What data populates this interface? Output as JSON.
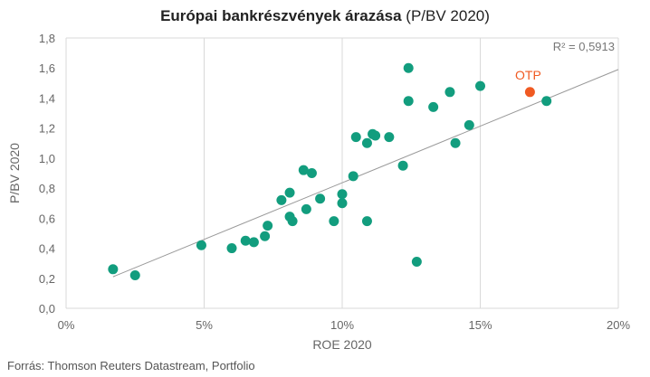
{
  "title_main": "Európai bankrészvények árazása",
  "title_paren": "(P/BV 2020)",
  "source": "Forrás: Thomson Reuters Datastream, Portfolio",
  "chart_data": {
    "type": "scatter",
    "xlabel": "ROE 2020",
    "ylabel": "P/BV 2020",
    "xlim": [
      0,
      20
    ],
    "ylim": [
      0,
      1.8
    ],
    "x_ticks": [
      "0%",
      "5%",
      "10%",
      "15%",
      "20%"
    ],
    "y_ticks": [
      "0,0",
      "0,2",
      "0,4",
      "0,6",
      "0,8",
      "1,0",
      "1,2",
      "1,4",
      "1,6",
      "1,8"
    ],
    "grid": "vertical",
    "r2_label": "R² = 0,5913",
    "trendline": {
      "x": [
        1.7,
        20
      ],
      "y": [
        0.21,
        1.59
      ]
    },
    "colors": {
      "points": "#129d7e",
      "highlight": "#f05a22",
      "trend": "#999999",
      "grid": "#d9d9d9"
    },
    "highlight": {
      "label": "OTP",
      "x": 16.8,
      "y": 1.44
    },
    "points": [
      {
        "x": 1.7,
        "y": 0.26
      },
      {
        "x": 2.5,
        "y": 0.22
      },
      {
        "x": 4.9,
        "y": 0.42
      },
      {
        "x": 6.0,
        "y": 0.4
      },
      {
        "x": 6.5,
        "y": 0.45
      },
      {
        "x": 6.8,
        "y": 0.44
      },
      {
        "x": 7.2,
        "y": 0.48
      },
      {
        "x": 7.3,
        "y": 0.55
      },
      {
        "x": 7.8,
        "y": 0.72
      },
      {
        "x": 8.1,
        "y": 0.77
      },
      {
        "x": 8.1,
        "y": 0.61
      },
      {
        "x": 8.2,
        "y": 0.58
      },
      {
        "x": 8.6,
        "y": 0.92
      },
      {
        "x": 8.7,
        "y": 0.66
      },
      {
        "x": 8.9,
        "y": 0.9
      },
      {
        "x": 9.2,
        "y": 0.73
      },
      {
        "x": 9.7,
        "y": 0.58
      },
      {
        "x": 10.0,
        "y": 0.76
      },
      {
        "x": 10.0,
        "y": 0.7
      },
      {
        "x": 10.4,
        "y": 0.88
      },
      {
        "x": 10.5,
        "y": 1.14
      },
      {
        "x": 10.9,
        "y": 1.1
      },
      {
        "x": 10.9,
        "y": 0.58
      },
      {
        "x": 11.1,
        "y": 1.16
      },
      {
        "x": 11.2,
        "y": 1.15
      },
      {
        "x": 11.7,
        "y": 1.14
      },
      {
        "x": 12.2,
        "y": 0.95
      },
      {
        "x": 12.4,
        "y": 1.6
      },
      {
        "x": 12.4,
        "y": 1.38
      },
      {
        "x": 12.7,
        "y": 0.31
      },
      {
        "x": 13.3,
        "y": 1.34
      },
      {
        "x": 13.9,
        "y": 1.44
      },
      {
        "x": 14.1,
        "y": 1.1
      },
      {
        "x": 14.6,
        "y": 1.22
      },
      {
        "x": 15.0,
        "y": 1.48
      },
      {
        "x": 17.4,
        "y": 1.38
      }
    ]
  }
}
